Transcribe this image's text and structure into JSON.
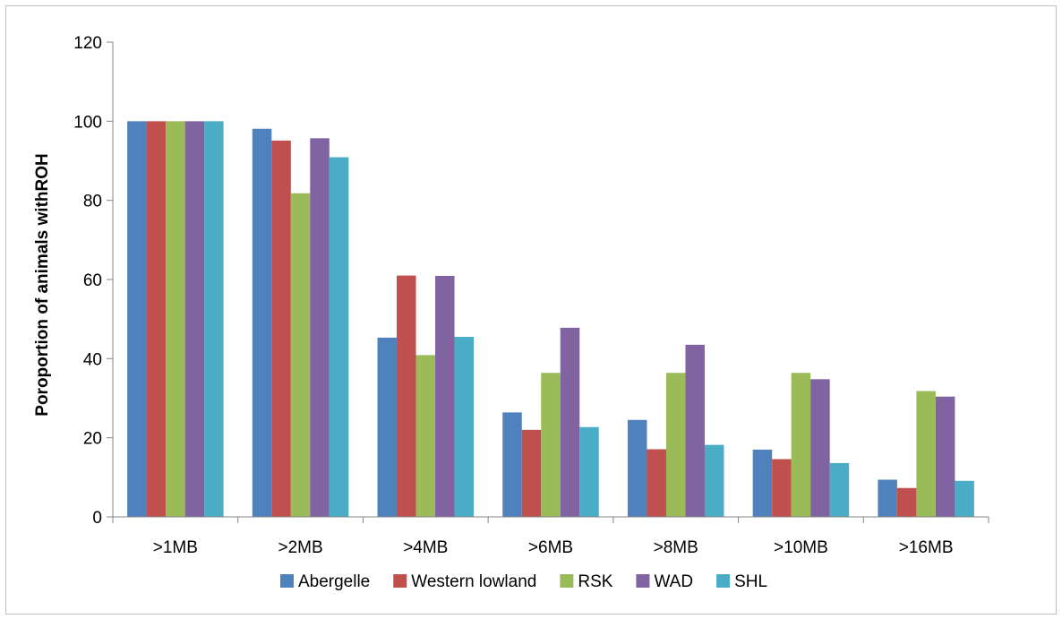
{
  "chart_data": {
    "type": "bar",
    "title": "",
    "xlabel": "",
    "ylabel": "Poroportion of animals withROH",
    "ylim": [
      0,
      120
    ],
    "yticks": [
      0,
      20,
      40,
      60,
      80,
      100,
      120
    ],
    "grid": false,
    "legend_position": "bottom",
    "categories": [
      ">1MB",
      ">2MB",
      ">4MB",
      ">6MB",
      ">8MB",
      ">10MB",
      ">16MB"
    ],
    "series": [
      {
        "name": "Abergelle",
        "color": "#4f81bd",
        "values": [
          100,
          98.1,
          45.3,
          26.4,
          24.5,
          17.0,
          9.4
        ]
      },
      {
        "name": "Western lowland",
        "color": "#c0504d",
        "values": [
          100,
          95.1,
          61.0,
          22.0,
          17.1,
          14.6,
          7.3
        ]
      },
      {
        "name": "RSK",
        "color": "#9bbb59",
        "values": [
          100,
          81.8,
          40.9,
          36.4,
          36.4,
          36.4,
          31.8
        ]
      },
      {
        "name": "WAD",
        "color": "#8064a2",
        "values": [
          100,
          95.7,
          60.9,
          47.8,
          43.5,
          34.8,
          30.4
        ]
      },
      {
        "name": "SHL",
        "color": "#4bacc6",
        "values": [
          100,
          90.9,
          45.5,
          22.7,
          18.2,
          13.6,
          9.1
        ]
      }
    ]
  }
}
